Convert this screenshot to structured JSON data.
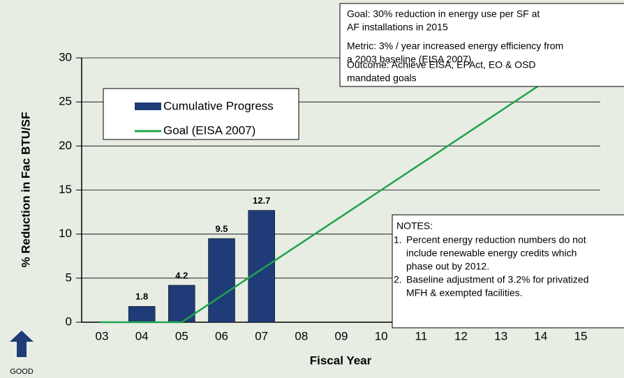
{
  "chart_data": {
    "type": "bar",
    "x_label": "Fiscal Year",
    "y_label": "% Reduction in Fac BTU/SF",
    "categories": [
      "03",
      "04",
      "05",
      "06",
      "07",
      "08",
      "09",
      "10",
      "11",
      "12",
      "13",
      "14",
      "15"
    ],
    "series": [
      {
        "name": "Cumulative Progress",
        "type": "bar",
        "color": "#1f3b78",
        "values": [
          null,
          1.8,
          4.2,
          9.5,
          12.7,
          null,
          null,
          null,
          null,
          null,
          null,
          null,
          null
        ]
      },
      {
        "name": "Goal (EISA 2007)",
        "type": "line",
        "color": "#1ea34a",
        "values": [
          0,
          0,
          0,
          3,
          6,
          9,
          12,
          15,
          18,
          21,
          24,
          27,
          30
        ]
      }
    ],
    "ylim": [
      0,
      30
    ],
    "yticks": [
      0,
      5,
      10,
      15,
      20,
      25,
      30
    ],
    "grid": true,
    "goal_box": [
      "Goal:  30% reduction in energy use per SF at",
      "AF installations in 2015",
      "Metric:  3% / year increased energy efficiency from",
      "a 2003 baseline  (EISA 2007)",
      "Outcome:  Achieve EISA, EPAct, EO & OSD",
      "mandated goals"
    ],
    "notes": {
      "title": "NOTES:",
      "items": [
        {
          "number": "1.",
          "lines": [
            "Percent energy reduction numbers do not",
            "include renewable energy credits which",
            "phase out by 2012."
          ]
        },
        {
          "number": "2.",
          "lines": [
            "Baseline adjustment of 3.2% for privatized",
            "MFH & exempted facilities."
          ]
        }
      ]
    },
    "indicator": "GOOD"
  }
}
